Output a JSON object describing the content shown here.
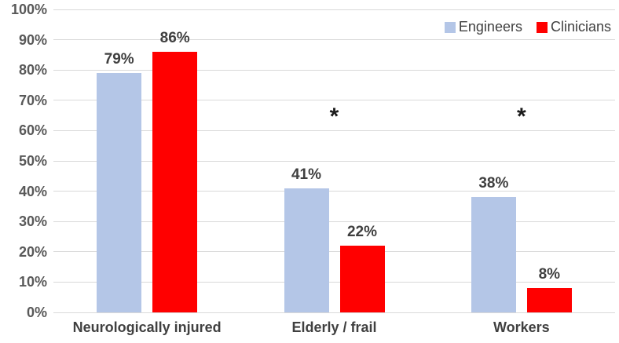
{
  "chart_data": {
    "type": "bar",
    "title": "",
    "xlabel": "",
    "ylabel": "",
    "categories": [
      "Neurologically injured",
      "Elderly / frail",
      "Workers"
    ],
    "series": [
      {
        "name": "Engineers",
        "color": "#b4c6e7",
        "values": [
          79,
          41,
          38
        ]
      },
      {
        "name": "Clinicians",
        "color": "#ff0000",
        "values": [
          86,
          22,
          8
        ]
      }
    ],
    "value_suffix": "%",
    "data_labels": [
      [
        "79%",
        "41%",
        "38%"
      ],
      [
        "86%",
        "22%",
        "8%"
      ]
    ],
    "y_ticks": [
      "0%",
      "10%",
      "20%",
      "30%",
      "40%",
      "50%",
      "60%",
      "70%",
      "80%",
      "90%",
      "100%"
    ],
    "y_tick_values": [
      0,
      10,
      20,
      30,
      40,
      50,
      60,
      70,
      80,
      90,
      100
    ],
    "ylim": [
      0,
      100
    ],
    "grid": true,
    "gridline_color": "#d9d9d9",
    "legend_position": "top-right",
    "annotations": [
      {
        "text": "*",
        "category_index": 1,
        "y_value": 65
      },
      {
        "text": "*",
        "category_index": 2,
        "y_value": 65
      }
    ]
  }
}
